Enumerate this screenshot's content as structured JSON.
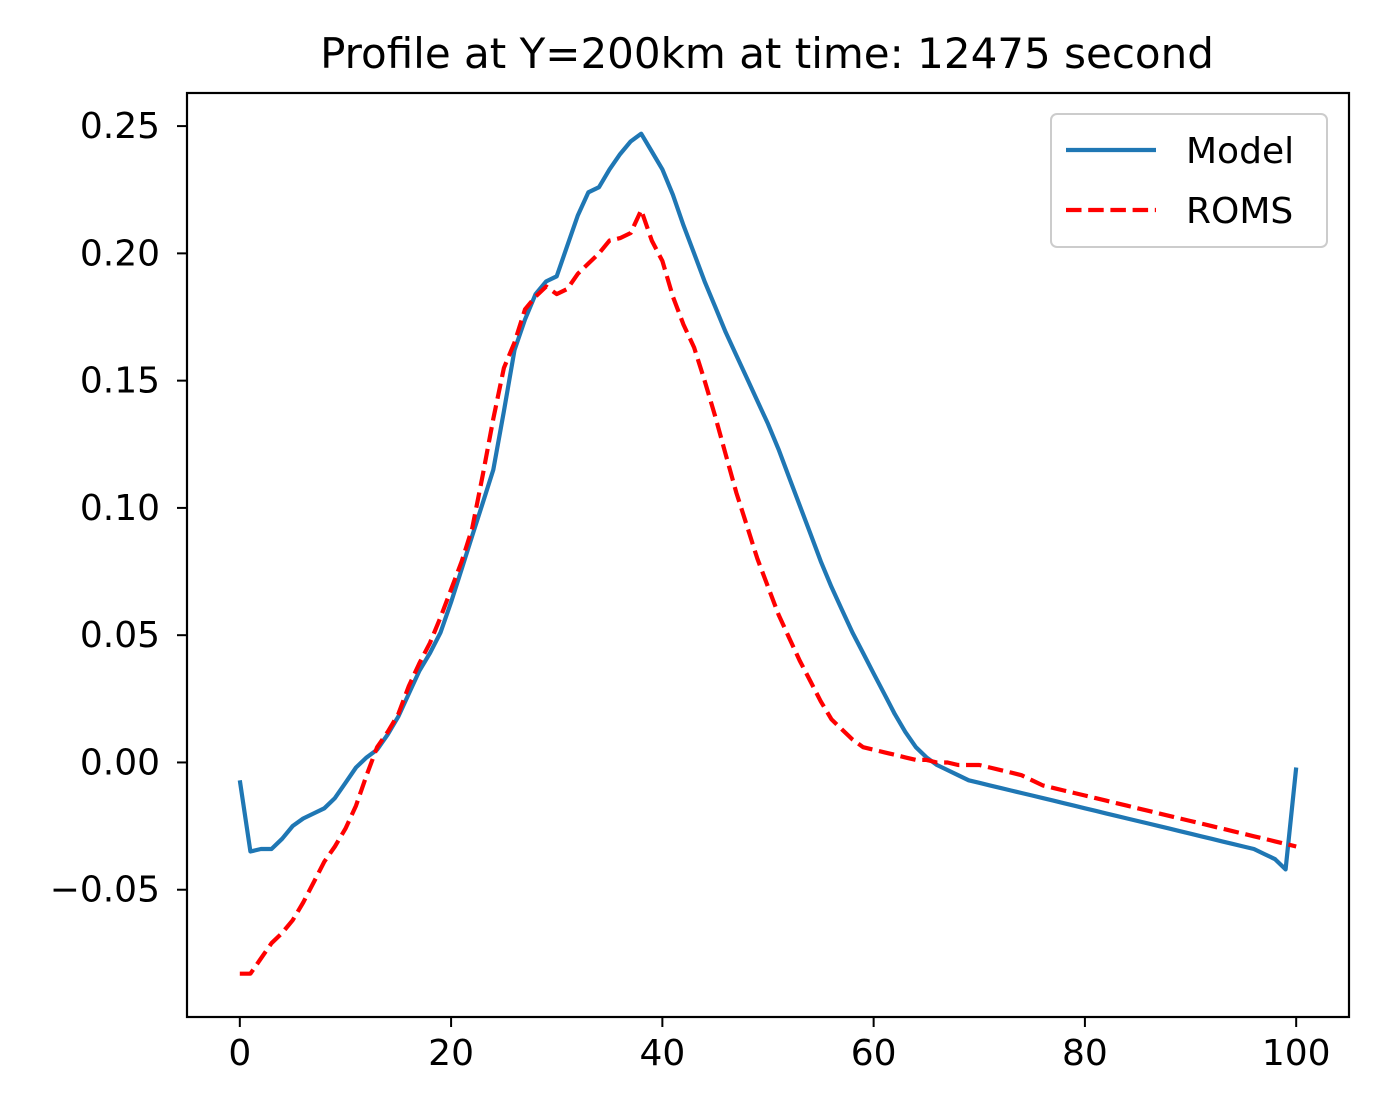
{
  "chart_data": {
    "type": "line",
    "title": "Profile at Y=200km at time: 12475 second",
    "xlabel": "",
    "ylabel": "",
    "xlim": [
      -5,
      105
    ],
    "ylim": [
      -0.1,
      0.263
    ],
    "xticks": [
      0,
      20,
      40,
      60,
      80,
      100
    ],
    "yticks": [
      -0.05,
      0.0,
      0.05,
      0.1,
      0.15,
      0.2,
      0.25
    ],
    "ytick_labels": [
      "−0.05",
      "0.00",
      "0.05",
      "0.10",
      "0.15",
      "0.20",
      "0.25"
    ],
    "xtick_labels": [
      "0",
      "20",
      "40",
      "60",
      "80",
      "100"
    ],
    "grid": false,
    "legend": "upper-right",
    "series": [
      {
        "name": "Model",
        "color": "#1f77b4",
        "style": "solid",
        "x": [
          0,
          1,
          2,
          3,
          4,
          5,
          6,
          7,
          8,
          9,
          10,
          11,
          12,
          13,
          14,
          15,
          16,
          17,
          18,
          19,
          20,
          21,
          22,
          23,
          24,
          25,
          26,
          27,
          28,
          29,
          30,
          31,
          32,
          33,
          34,
          35,
          36,
          37,
          38,
          39,
          40,
          41,
          42,
          43,
          44,
          45,
          46,
          47,
          48,
          49,
          50,
          51,
          52,
          53,
          54,
          55,
          56,
          57,
          58,
          59,
          60,
          61,
          62,
          63,
          64,
          65,
          66,
          67,
          68,
          69,
          70,
          71,
          72,
          73,
          74,
          75,
          76,
          77,
          78,
          79,
          80,
          81,
          82,
          83,
          84,
          85,
          86,
          87,
          88,
          89,
          90,
          91,
          92,
          93,
          94,
          95,
          96,
          97,
          98,
          99,
          100
        ],
        "y": [
          -0.007,
          -0.035,
          -0.034,
          -0.034,
          -0.03,
          -0.025,
          -0.022,
          -0.02,
          -0.018,
          -0.014,
          -0.008,
          -0.002,
          0.002,
          0.005,
          0.011,
          0.018,
          0.027,
          0.036,
          0.043,
          0.051,
          0.063,
          0.076,
          0.089,
          0.102,
          0.115,
          0.138,
          0.162,
          0.174,
          0.184,
          0.189,
          0.191,
          0.203,
          0.215,
          0.224,
          0.226,
          0.233,
          0.239,
          0.244,
          0.247,
          0.24,
          0.233,
          0.223,
          0.211,
          0.2,
          0.189,
          0.179,
          0.169,
          0.16,
          0.151,
          0.142,
          0.133,
          0.123,
          0.112,
          0.101,
          0.09,
          0.079,
          0.069,
          0.06,
          0.051,
          0.043,
          0.035,
          0.027,
          0.019,
          0.012,
          0.006,
          0.002,
          -0.001,
          -0.003,
          -0.005,
          -0.007,
          -0.008,
          -0.009,
          -0.01,
          -0.011,
          -0.012,
          -0.013,
          -0.014,
          -0.015,
          -0.016,
          -0.017,
          -0.018,
          -0.019,
          -0.02,
          -0.021,
          -0.022,
          -0.023,
          -0.024,
          -0.025,
          -0.026,
          -0.027,
          -0.028,
          -0.029,
          -0.03,
          -0.031,
          -0.032,
          -0.033,
          -0.034,
          -0.036,
          -0.038,
          -0.042,
          -0.002
        ]
      },
      {
        "name": "ROMS",
        "color": "#ff0000",
        "style": "dashed",
        "x": [
          0,
          1,
          2,
          3,
          4,
          5,
          6,
          7,
          8,
          9,
          10,
          11,
          12,
          13,
          14,
          15,
          16,
          17,
          18,
          19,
          20,
          21,
          22,
          23,
          24,
          25,
          26,
          27,
          28,
          29,
          30,
          31,
          32,
          33,
          34,
          35,
          36,
          37,
          38,
          39,
          40,
          41,
          42,
          43,
          44,
          45,
          46,
          47,
          48,
          49,
          50,
          51,
          52,
          53,
          54,
          55,
          56,
          57,
          58,
          59,
          60,
          61,
          62,
          63,
          64,
          65,
          66,
          67,
          68,
          69,
          70,
          71,
          72,
          73,
          74,
          75,
          76,
          77,
          78,
          79,
          80,
          81,
          82,
          83,
          84,
          85,
          86,
          87,
          88,
          89,
          90,
          91,
          92,
          93,
          94,
          95,
          96,
          97,
          98,
          99,
          100
        ],
        "y": [
          -0.083,
          -0.083,
          -0.077,
          -0.071,
          -0.067,
          -0.062,
          -0.055,
          -0.047,
          -0.039,
          -0.033,
          -0.026,
          -0.017,
          -0.005,
          0.006,
          0.012,
          0.019,
          0.03,
          0.039,
          0.047,
          0.057,
          0.068,
          0.079,
          0.092,
          0.113,
          0.135,
          0.155,
          0.165,
          0.178,
          0.183,
          0.187,
          0.184,
          0.186,
          0.192,
          0.196,
          0.2,
          0.205,
          0.206,
          0.208,
          0.217,
          0.205,
          0.197,
          0.183,
          0.172,
          0.163,
          0.15,
          0.136,
          0.121,
          0.106,
          0.093,
          0.08,
          0.069,
          0.058,
          0.049,
          0.04,
          0.032,
          0.024,
          0.017,
          0.013,
          0.009,
          0.006,
          0.005,
          0.004,
          0.003,
          0.002,
          0.001,
          0.001,
          0.0,
          0.0,
          -0.001,
          -0.001,
          -0.001,
          -0.002,
          -0.003,
          -0.004,
          -0.005,
          -0.007,
          -0.009,
          -0.01,
          -0.011,
          -0.012,
          -0.013,
          -0.014,
          -0.015,
          -0.016,
          -0.017,
          -0.018,
          -0.019,
          -0.02,
          -0.021,
          -0.022,
          -0.023,
          -0.024,
          -0.025,
          -0.026,
          -0.027,
          -0.028,
          -0.029,
          -0.03,
          -0.031,
          -0.032,
          -0.033
        ]
      }
    ]
  }
}
